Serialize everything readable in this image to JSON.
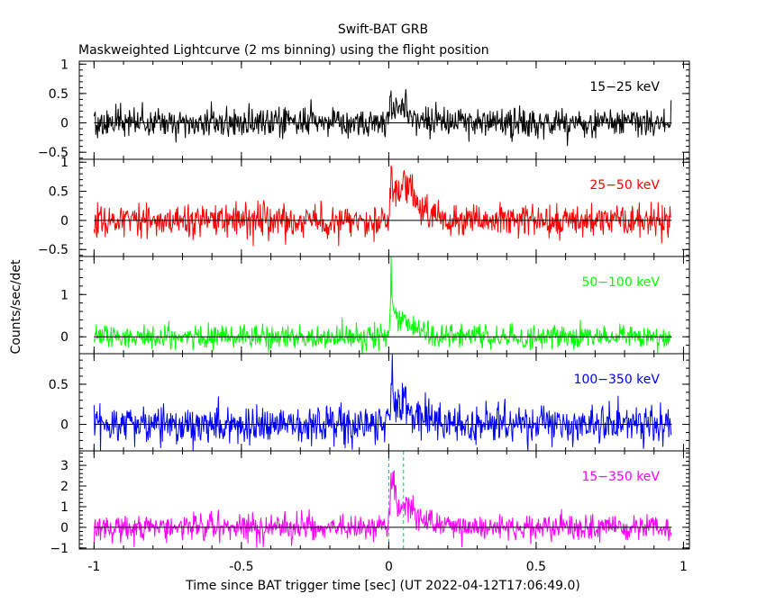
{
  "header": {
    "title": "Swift-BAT GRB",
    "subtitle": "Maskweighted Lightcurve (2 ms binning) using the flight position"
  },
  "axes": {
    "ylabel": "Counts/sec/det",
    "xlabel": "Time since BAT trigger time [sec] (UT 2022-04-12T17:06:49.0)"
  },
  "chart_data": {
    "type": "line",
    "binning": "2 ms",
    "xlim": [
      -1.05,
      1.02
    ],
    "x_ticks": [
      -1,
      -0.5,
      0,
      0.5,
      1
    ],
    "x_tick_labels": [
      "-1",
      "-0.5",
      "0",
      "0.5",
      "1"
    ],
    "x_range": [
      -1.0,
      0.96
    ],
    "panels": [
      {
        "name": "15-25 keV",
        "label": "15−25 keV",
        "color": "#000000",
        "ylim": [
          -0.62,
          1.05
        ],
        "yticks": [
          -0.5,
          0,
          0.5,
          1
        ],
        "ytick_labels": [
          "−0.5",
          "0",
          "0.5",
          "1"
        ],
        "noise": 0.18,
        "peaks": [
          {
            "t": 0.005,
            "amp": 0.45,
            "rise": 0.004,
            "decay": 0.03
          },
          {
            "t": 0.05,
            "amp": 0.2,
            "rise": 0.01,
            "decay": 0.05
          }
        ]
      },
      {
        "name": "25-50 keV",
        "label": "25−50 keV",
        "color": "#ff0000",
        "ylim": [
          -0.62,
          1.05
        ],
        "yticks": [
          -0.5,
          0,
          0.5,
          1
        ],
        "ytick_labels": [
          "−0.5",
          "0",
          "0.5",
          "1"
        ],
        "noise": 0.2,
        "peaks": [
          {
            "t": 0.005,
            "amp": 0.7,
            "rise": 0.004,
            "decay": 0.03
          },
          {
            "t": 0.05,
            "amp": 0.6,
            "rise": 0.01,
            "decay": 0.05
          }
        ]
      },
      {
        "name": "50-100 keV",
        "label": "50−100 keV",
        "color": "#00ff00",
        "ylim": [
          -0.4,
          1.9
        ],
        "yticks": [
          0,
          1
        ],
        "ytick_labels": [
          "0",
          "1"
        ],
        "noise": 0.2,
        "peaks": [
          {
            "t": 0.008,
            "amp": 1.3,
            "rise": 0.004,
            "decay": 0.02
          },
          {
            "t": 0.05,
            "amp": 0.35,
            "rise": 0.01,
            "decay": 0.05
          }
        ]
      },
      {
        "name": "100-350 keV",
        "label": "100−350 keV",
        "color": "#0000ff",
        "ylim": [
          -0.33,
          0.88
        ],
        "yticks": [
          0,
          0.5
        ],
        "ytick_labels": [
          "0",
          "0.5"
        ],
        "noise": 0.17,
        "peaks": [
          {
            "t": 0.008,
            "amp": 0.55,
            "rise": 0.004,
            "decay": 0.02
          },
          {
            "t": 0.05,
            "amp": 0.2,
            "rise": 0.01,
            "decay": 0.05
          }
        ]
      },
      {
        "name": "15-350 keV",
        "label": "15−350 keV",
        "color": "#ff00ff",
        "ylim": [
          -1.05,
          3.7
        ],
        "yticks": [
          -1,
          0,
          1,
          2,
          3
        ],
        "ytick_labels": [
          "−1",
          "0",
          "1",
          "2",
          "3"
        ],
        "noise": 0.45,
        "peaks": [
          {
            "t": 0.008,
            "amp": 2.8,
            "rise": 0.004,
            "decay": 0.025
          },
          {
            "t": 0.06,
            "amp": 1.0,
            "rise": 0.01,
            "decay": 0.06
          }
        ]
      }
    ],
    "trigger_markers": [
      0,
      0.05
    ]
  }
}
